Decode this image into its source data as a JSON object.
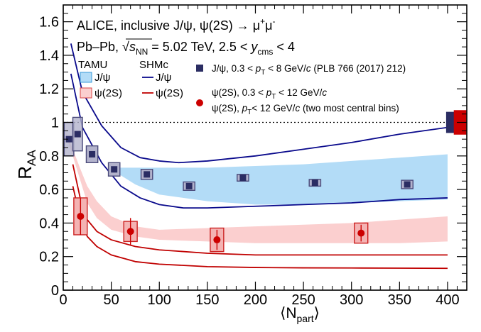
{
  "chart_data": {
    "type": "scatter",
    "xlim": [
      0,
      420
    ],
    "ylim": [
      0,
      1.7
    ],
    "x_ticks": [
      0,
      50,
      100,
      150,
      200,
      250,
      300,
      350,
      400
    ],
    "y_ticks": [
      0,
      0.2,
      0.4,
      0.6,
      0.8,
      1,
      1.2,
      1.4,
      1.6
    ],
    "x_tick_labels": [
      "0",
      "50",
      "100",
      "150",
      "200",
      "250",
      "300",
      "350",
      "400"
    ],
    "y_tick_labels": [
      "0",
      "0.2",
      "0.4",
      "0.6",
      "0.8",
      "1",
      "1.2",
      "1.4",
      "1.6"
    ],
    "ylabel": {
      "main": "R",
      "sub": "AA"
    },
    "xlabel": {
      "open": "⟨N",
      "sub": "part",
      "close": "⟩"
    },
    "grid": false,
    "reference_line": {
      "y": 1,
      "style": "dotted"
    },
    "annotations": {
      "line1_a": "ALICE, inclusive J/ψ, ψ(2S) → μ",
      "line1_sup1": "+",
      "line1_b": "μ",
      "line1_sup2": "-",
      "line2_a": "Pb–Pb, ",
      "line2_sqrt": "√",
      "line2_s": "s",
      "line2_nn": "NN",
      "line2_b": " = 5.02 TeV, 2.5 < ",
      "line2_y": "y",
      "line2_cms": "cms",
      "line2_c": " < 4"
    },
    "legend": {
      "tamu_header": "TAMU",
      "shmc_header": "SHMc",
      "tamu_jpsi": "J/ψ",
      "tamu_psi2s": "ψ(2S)",
      "shmc_jpsi": "J/ψ",
      "shmc_psi2s": "ψ(2S)",
      "data_jpsi": {
        "a": "J/ψ, 0.3 < ",
        "p": "p",
        "t": "T",
        "b": " < 8 GeV/",
        "c": "c",
        "d": " (PLB 766 (2017) 212)"
      },
      "data_psi2s_1": {
        "a": "ψ(2S), 0.3 < ",
        "p": "p",
        "t": "T",
        "b": " < 12 GeV/",
        "c": "c"
      },
      "data_psi2s_2": {
        "a": "ψ(2S), ",
        "p": "p",
        "t": "T",
        "b": "< 12 GeV/",
        "c": "c",
        "d": " (two most central bins)"
      }
    },
    "colors": {
      "jpsi_data": "#2b2d63",
      "jpsi_box_fill": "#b3b3cc",
      "jpsi_box_stroke": "#4a4a7a",
      "psi2s_data": "#cc0000",
      "psi2s_box_fill": "#f4b3b3",
      "psi2s_box_stroke": "#cc2222",
      "tamu_jpsi_band": "#b3dcf7",
      "tamu_psi2s_band": "#fbcfcf",
      "shmc_jpsi_line": "#0a0a8c",
      "shmc_psi2s_line": "#c00000"
    },
    "series": [
      {
        "name": "J/ψ, 0.3 < pT < 8 GeV/c (PLB 766 (2017) 212)",
        "marker": "square",
        "points": [
          {
            "x": 6,
            "y": 0.9,
            "sys": 0.1,
            "xerr": 5
          },
          {
            "x": 15,
            "y": 0.93,
            "sys": 0.1,
            "xerr": 5
          },
          {
            "x": 30,
            "y": 0.81,
            "sys": 0.05,
            "xerr": 6
          },
          {
            "x": 53,
            "y": 0.72,
            "sys": 0.04,
            "xerr": 6
          },
          {
            "x": 87,
            "y": 0.69,
            "sys": 0.03,
            "xerr": 6
          },
          {
            "x": 131,
            "y": 0.62,
            "sys": 0.025,
            "xerr": 6
          },
          {
            "x": 187,
            "y": 0.67,
            "sys": 0.02,
            "xerr": 6
          },
          {
            "x": 262,
            "y": 0.64,
            "sys": 0.02,
            "xerr": 6
          },
          {
            "x": 358,
            "y": 0.63,
            "sys": 0.025,
            "xerr": 6
          },
          {
            "x": 405,
            "y": 1.0,
            "sys": 0.06,
            "xerr": 6
          }
        ]
      },
      {
        "name": "ψ(2S), 0.3 < pT < 12 GeV/c",
        "marker": "circle",
        "points": [
          {
            "x": 18,
            "y": 0.44,
            "stat": 0.11,
            "sys": 0.11,
            "xerr": 7
          },
          {
            "x": 70,
            "y": 0.35,
            "stat": 0.08,
            "sys": 0.06,
            "xerr": 7
          },
          {
            "x": 160,
            "y": 0.3,
            "stat": 0.06,
            "sys": 0.07,
            "xerr": 7
          },
          {
            "x": 310,
            "y": 0.34,
            "stat": 0.05,
            "sys": 0.06,
            "xerr": 7
          }
        ]
      },
      {
        "name": "ψ(2S), pT < 12 GeV/c (two most central bins)",
        "marker": "circle",
        "points": [
          {
            "x": 413,
            "y": 1.0,
            "sys": 0.07,
            "xerr": 6
          }
        ]
      },
      {
        "name": "TAMU J/ψ",
        "kind": "band",
        "x": [
          50,
          75,
          100,
          150,
          200,
          250,
          300,
          350,
          400
        ],
        "lower": [
          0.72,
          0.63,
          0.57,
          0.53,
          0.51,
          0.51,
          0.52,
          0.53,
          0.54
        ],
        "upper": [
          0.73,
          0.73,
          0.73,
          0.73,
          0.74,
          0.75,
          0.77,
          0.79,
          0.81
        ]
      },
      {
        "name": "TAMU ψ(2S)",
        "kind": "band",
        "x": [
          3,
          10,
          18,
          25,
          35,
          50,
          75,
          100,
          150,
          200,
          250,
          300,
          350,
          400
        ],
        "lower": [
          0.92,
          0.8,
          0.65,
          0.52,
          0.43,
          0.36,
          0.32,
          0.3,
          0.29,
          0.28,
          0.28,
          0.28,
          0.28,
          0.29
        ],
        "upper": [
          0.94,
          0.84,
          0.72,
          0.62,
          0.53,
          0.44,
          0.38,
          0.36,
          0.37,
          0.38,
          0.39,
          0.4,
          0.42,
          0.44
        ]
      },
      {
        "name": "SHMc J/ψ (upper)",
        "kind": "line",
        "x": [
          8,
          20,
          40,
          60,
          80,
          100,
          120,
          150,
          200,
          250,
          300,
          350,
          400
        ],
        "y": [
          1.47,
          1.18,
          0.98,
          0.85,
          0.79,
          0.77,
          0.76,
          0.77,
          0.8,
          0.84,
          0.88,
          0.93,
          0.97
        ]
      },
      {
        "name": "SHMc J/ψ (lower)",
        "kind": "line",
        "x": [
          8,
          20,
          40,
          60,
          80,
          100,
          125,
          150,
          200,
          250,
          300,
          350,
          400
        ],
        "y": [
          1.29,
          0.97,
          0.76,
          0.62,
          0.55,
          0.51,
          0.49,
          0.49,
          0.5,
          0.51,
          0.52,
          0.54,
          0.55
        ]
      },
      {
        "name": "SHMc ψ(2S) (upper)",
        "kind": "line",
        "x": [
          10,
          18,
          25,
          35,
          50,
          75,
          100,
          150,
          200,
          250,
          300,
          350,
          400
        ],
        "y": [
          0.75,
          0.54,
          0.42,
          0.35,
          0.3,
          0.26,
          0.24,
          0.22,
          0.21,
          0.21,
          0.21,
          0.21,
          0.21
        ],
        "dashed": false
      },
      {
        "name": "SHMc ψ(2S) (lower)",
        "kind": "line",
        "x": [
          10,
          18,
          25,
          35,
          50,
          75,
          100,
          150,
          200,
          250,
          300,
          350,
          400
        ],
        "y": [
          0.62,
          0.42,
          0.32,
          0.26,
          0.21,
          0.17,
          0.155,
          0.14,
          0.135,
          0.133,
          0.132,
          0.131,
          0.13
        ]
      }
    ]
  }
}
